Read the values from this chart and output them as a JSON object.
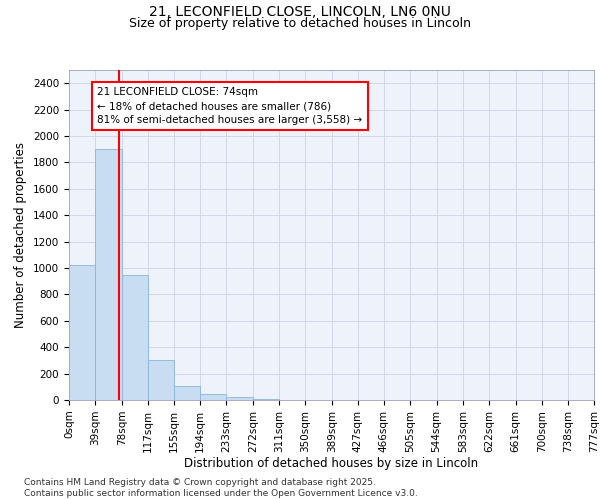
{
  "title_line1": "21, LECONFIELD CLOSE, LINCOLN, LN6 0NU",
  "title_line2": "Size of property relative to detached houses in Lincoln",
  "xlabel": "Distribution of detached houses by size in Lincoln",
  "ylabel": "Number of detached properties",
  "bar_color": "#c9ddf2",
  "bar_edge_color": "#8ab4d8",
  "grid_color": "#d0d8e8",
  "background_color": "#eef2fa",
  "property_line_x": 74,
  "property_line_color": "red",
  "annotation_text": "21 LECONFIELD CLOSE: 74sqm\n← 18% of detached houses are smaller (786)\n81% of semi-detached houses are larger (3,558) →",
  "bin_edges": [
    0,
    39,
    78,
    117,
    155,
    194,
    233,
    272,
    311,
    350,
    389,
    427,
    466,
    505,
    544,
    583,
    622,
    661,
    700,
    738,
    777
  ],
  "bin_labels": [
    "0sqm",
    "39sqm",
    "78sqm",
    "117sqm",
    "155sqm",
    "194sqm",
    "233sqm",
    "272sqm",
    "311sqm",
    "350sqm",
    "389sqm",
    "427sqm",
    "466sqm",
    "505sqm",
    "544sqm",
    "583sqm",
    "622sqm",
    "661sqm",
    "700sqm",
    "738sqm",
    "777sqm"
  ],
  "bar_heights": [
    1025,
    1900,
    950,
    300,
    105,
    45,
    25,
    10,
    3,
    1,
    0,
    0,
    0,
    0,
    0,
    0,
    0,
    0,
    0,
    0
  ],
  "ylim": [
    0,
    2500
  ],
  "yticks": [
    0,
    200,
    400,
    600,
    800,
    1000,
    1200,
    1400,
    1600,
    1800,
    2000,
    2200,
    2400
  ],
  "footer": "Contains HM Land Registry data © Crown copyright and database right 2025.\nContains public sector information licensed under the Open Government Licence v3.0.",
  "title1_fontsize": 10,
  "title2_fontsize": 9,
  "tick_fontsize": 7.5,
  "axis_label_fontsize": 8.5,
  "footer_fontsize": 6.5,
  "annot_fontsize": 7.5
}
